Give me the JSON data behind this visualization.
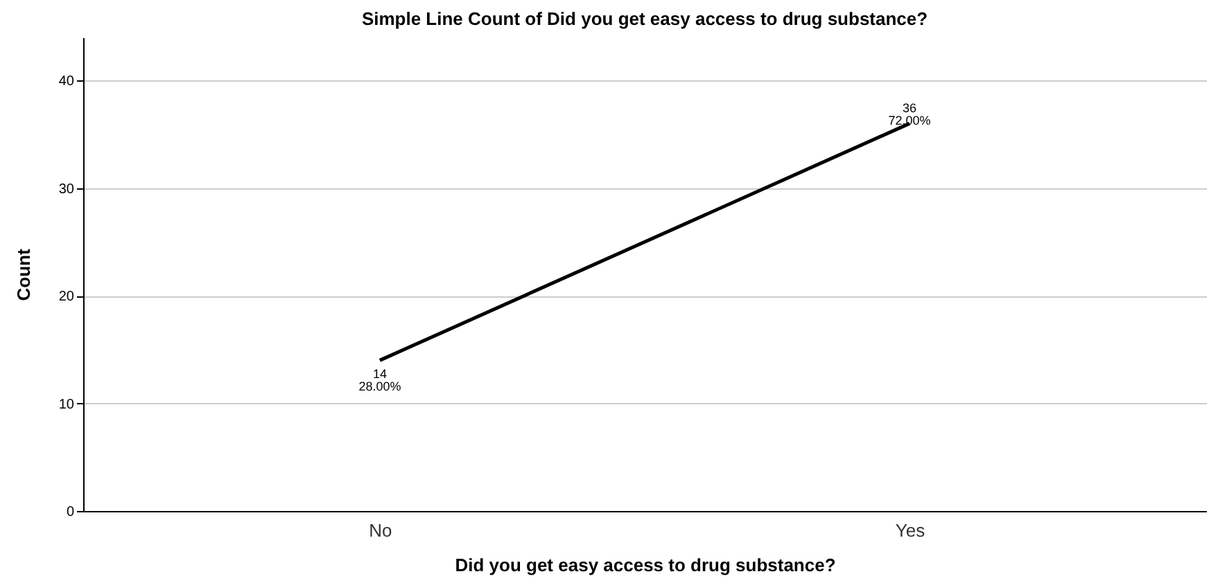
{
  "chart_data": {
    "type": "line",
    "title": "Simple Line Count of Did you get easy access to drug substance?",
    "xlabel": "Did you get easy access to drug substance?",
    "ylabel": "Count",
    "categories": [
      "No",
      "Yes"
    ],
    "series": [
      {
        "color": "#000000",
        "values": [
          14,
          36
        ],
        "value_labels": [
          "14\n28.00%",
          "36\n72.00%"
        ]
      }
    ],
    "ylim": [
      0,
      44
    ],
    "yticks": [
      0,
      10,
      20,
      30,
      40
    ],
    "grid": "y",
    "legend": false,
    "marker": "none",
    "line_style": "solid"
  }
}
